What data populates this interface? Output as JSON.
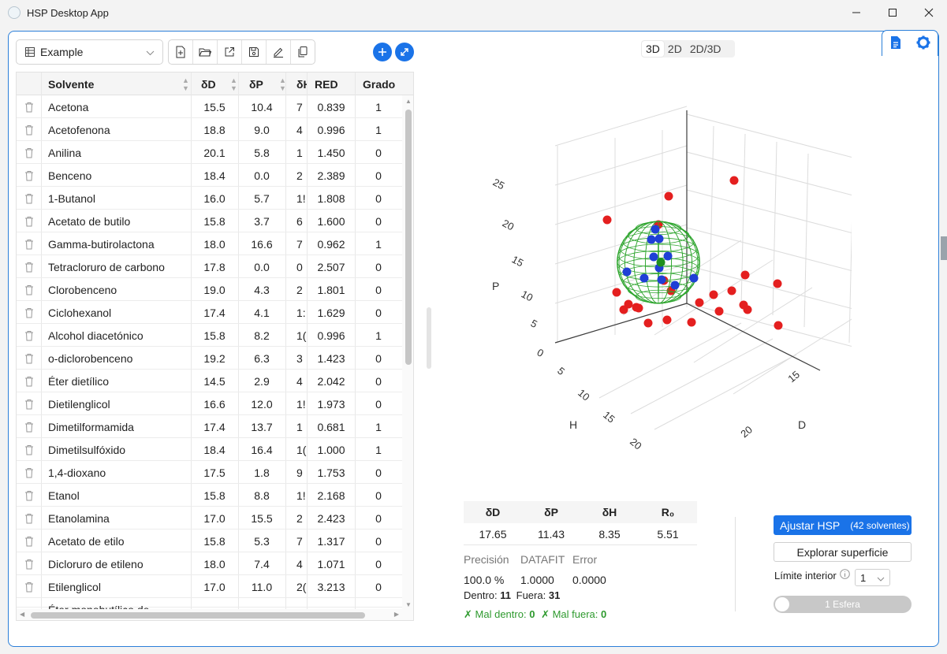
{
  "window": {
    "title": "HSP Desktop App"
  },
  "dataset": {
    "selected": "Example"
  },
  "view_tabs": [
    "3D",
    "2D",
    "2D/3D"
  ],
  "active_view": "3D",
  "table": {
    "columns": [
      "Solvente",
      "δD",
      "δP",
      "δH",
      "RED",
      "Grado"
    ],
    "rows": [
      {
        "name": "Acetona",
        "d": "15.5",
        "p": "10.4",
        "h": "7",
        "red": "0.839",
        "grado": "1"
      },
      {
        "name": "Acetofenona",
        "d": "18.8",
        "p": "9.0",
        "h": "4",
        "red": "0.996",
        "grado": "1"
      },
      {
        "name": "Anilina",
        "d": "20.1",
        "p": "5.8",
        "h": "1",
        "red": "1.450",
        "grado": "0"
      },
      {
        "name": "Benceno",
        "d": "18.4",
        "p": "0.0",
        "h": "2",
        "red": "2.389",
        "grado": "0"
      },
      {
        "name": "1-Butanol",
        "d": "16.0",
        "p": "5.7",
        "h": "1!",
        "red": "1.808",
        "grado": "0"
      },
      {
        "name": "Acetato de butilo",
        "d": "15.8",
        "p": "3.7",
        "h": "6",
        "red": "1.600",
        "grado": "0"
      },
      {
        "name": "Gamma-butirolactona",
        "d": "18.0",
        "p": "16.6",
        "h": "7",
        "red": "0.962",
        "grado": "1"
      },
      {
        "name": "Tetracloruro de carbono",
        "d": "17.8",
        "p": "0.0",
        "h": "0",
        "red": "2.507",
        "grado": "0"
      },
      {
        "name": "Clorobenceno",
        "d": "19.0",
        "p": "4.3",
        "h": "2",
        "red": "1.801",
        "grado": "0"
      },
      {
        "name": "Ciclohexanol",
        "d": "17.4",
        "p": "4.1",
        "h": "1:",
        "red": "1.629",
        "grado": "0"
      },
      {
        "name": "Alcohol diacetónico",
        "d": "15.8",
        "p": "8.2",
        "h": "1(",
        "red": "0.996",
        "grado": "1"
      },
      {
        "name": "o-diclorobenceno",
        "d": "19.2",
        "p": "6.3",
        "h": "3",
        "red": "1.423",
        "grado": "0"
      },
      {
        "name": "Éter dietílico",
        "d": "14.5",
        "p": "2.9",
        "h": "4",
        "red": "2.042",
        "grado": "0"
      },
      {
        "name": "Dietilenglicol",
        "d": "16.6",
        "p": "12.0",
        "h": "1!",
        "red": "1.973",
        "grado": "0"
      },
      {
        "name": "Dimetilformamida",
        "d": "17.4",
        "p": "13.7",
        "h": "1",
        "red": "0.681",
        "grado": "1"
      },
      {
        "name": "Dimetilsulfóxido",
        "d": "18.4",
        "p": "16.4",
        "h": "1(",
        "red": "1.000",
        "grado": "1"
      },
      {
        "name": "1,4-dioxano",
        "d": "17.5",
        "p": "1.8",
        "h": "9",
        "red": "1.753",
        "grado": "0"
      },
      {
        "name": "Etanol",
        "d": "15.8",
        "p": "8.8",
        "h": "1!",
        "red": "2.168",
        "grado": "0"
      },
      {
        "name": "Etanolamina",
        "d": "17.0",
        "p": "15.5",
        "h": "2",
        "red": "2.423",
        "grado": "0"
      },
      {
        "name": "Acetato de etilo",
        "d": "15.8",
        "p": "5.3",
        "h": "7",
        "red": "1.317",
        "grado": "0"
      },
      {
        "name": "Dicloruro de etileno",
        "d": "18.0",
        "p": "7.4",
        "h": "4",
        "red": "1.071",
        "grado": "0"
      },
      {
        "name": "Etilenglicol",
        "d": "17.0",
        "p": "11.0",
        "h": "2(",
        "red": "3.213",
        "grado": "0"
      },
      {
        "name": "Éter monobutílico de",
        "d": "",
        "p": "",
        "h": "",
        "red": "",
        "grado": ""
      }
    ]
  },
  "plot": {
    "axis_labels": {
      "p": "P",
      "h": "H",
      "d": "D"
    },
    "p_ticks": [
      "0",
      "5",
      "10",
      "15",
      "20",
      "25"
    ],
    "h_ticks": [
      "5",
      "10",
      "15",
      "20"
    ],
    "d_ticks": [
      "15",
      "20"
    ],
    "colors": {
      "inside": "#1f3fd6",
      "outside": "#e41f1f",
      "center": "#1e8f1e",
      "sphere": "#2ea52e"
    }
  },
  "results": {
    "headers": [
      "δD",
      "δP",
      "δH",
      "R₀"
    ],
    "values": [
      "17.65",
      "11.43",
      "8.35",
      "5.51"
    ]
  },
  "stats": {
    "labels": [
      "Precisión",
      "DATAFIT",
      "Error"
    ],
    "values": [
      "100.0 %",
      "1.0000",
      "0.0000"
    ],
    "dentro_label": "Dentro:",
    "dentro": "11",
    "fuera_label": "Fuera:",
    "fuera": "31",
    "mal_dentro_label": "Mal dentro:",
    "mal_dentro": "0",
    "mal_fuera_label": "Mal fuera:",
    "mal_fuera": "0"
  },
  "actions": {
    "fit_label": "Ajustar HSP",
    "fit_badge": "(42 solventes)",
    "explore_label": "Explorar superficie",
    "limit_label": "Límite interior",
    "limit_value": "1",
    "toggle_label": "1 Esfera"
  }
}
